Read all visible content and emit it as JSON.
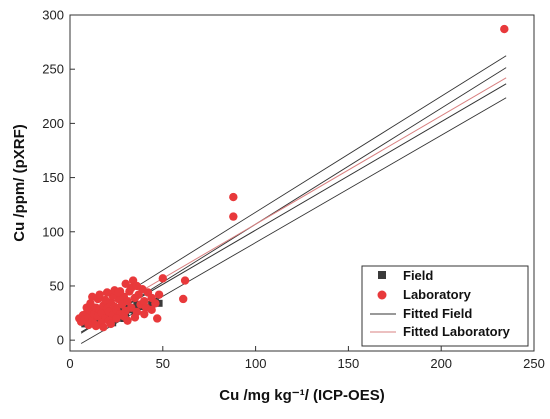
{
  "chart_data": {
    "type": "scatter",
    "title": "",
    "xlabel": "Cu /mg kg⁻¹/ (ICP-OES)",
    "ylabel": "Cu /ppm/ (pXRF)",
    "xlim": [
      0,
      250
    ],
    "ylim": [
      -10,
      300
    ],
    "x_ticks": [
      0,
      50,
      100,
      150,
      200,
      250
    ],
    "y_ticks": [
      0,
      50,
      100,
      150,
      200,
      250,
      300
    ],
    "grid": false,
    "legend_position": "bottom-right",
    "colors": {
      "field": "#3a3a3a",
      "laboratory": "#e8393b",
      "fitted_field": "#333333",
      "fitted_laboratory": "#d98080"
    },
    "series": [
      {
        "name": "Field",
        "marker": "square",
        "points": [
          [
            8,
            15
          ],
          [
            10,
            18
          ],
          [
            12,
            20
          ],
          [
            13,
            17
          ],
          [
            15,
            22
          ],
          [
            16,
            19
          ],
          [
            18,
            24
          ],
          [
            19,
            21
          ],
          [
            20,
            26
          ],
          [
            21,
            23
          ],
          [
            22,
            19
          ],
          [
            24,
            27
          ],
          [
            25,
            24
          ],
          [
            26,
            22
          ],
          [
            27,
            29
          ],
          [
            28,
            26
          ],
          [
            30,
            25
          ],
          [
            31,
            31
          ],
          [
            32,
            28
          ],
          [
            34,
            30
          ],
          [
            35,
            27
          ],
          [
            36,
            33
          ],
          [
            38,
            31
          ],
          [
            40,
            34
          ],
          [
            42,
            30
          ],
          [
            44,
            33
          ],
          [
            46,
            36
          ],
          [
            48,
            34
          ],
          [
            14,
            28
          ],
          [
            17,
            14
          ],
          [
            23,
            16
          ],
          [
            29,
            20
          ]
        ]
      },
      {
        "name": "Laboratory",
        "marker": "circle",
        "points": [
          [
            5,
            20
          ],
          [
            6,
            17
          ],
          [
            7,
            23
          ],
          [
            8,
            19
          ],
          [
            9,
            25
          ],
          [
            10,
            21
          ],
          [
            11,
            27
          ],
          [
            12,
            18
          ],
          [
            13,
            24
          ],
          [
            14,
            30
          ],
          [
            15,
            22
          ],
          [
            16,
            28
          ],
          [
            17,
            25
          ],
          [
            18,
            32
          ],
          [
            19,
            20
          ],
          [
            20,
            29
          ],
          [
            21,
            26
          ],
          [
            22,
            35
          ],
          [
            23,
            23
          ],
          [
            24,
            31
          ],
          [
            25,
            28
          ],
          [
            26,
            38
          ],
          [
            27,
            24
          ],
          [
            28,
            33
          ],
          [
            29,
            40
          ],
          [
            30,
            27
          ],
          [
            31,
            36
          ],
          [
            32,
            45
          ],
          [
            33,
            30
          ],
          [
            34,
            55
          ],
          [
            35,
            39
          ],
          [
            36,
            26
          ],
          [
            37,
            42
          ],
          [
            38,
            33
          ],
          [
            39,
            47
          ],
          [
            40,
            36
          ],
          [
            41,
            30
          ],
          [
            42,
            44
          ],
          [
            44,
            39
          ],
          [
            46,
            34
          ],
          [
            48,
            42
          ],
          [
            50,
            57
          ],
          [
            9,
            30
          ],
          [
            11,
            34
          ],
          [
            13,
            15
          ],
          [
            15,
            38
          ],
          [
            17,
            16
          ],
          [
            19,
            37
          ],
          [
            21,
            18
          ],
          [
            23,
            41
          ],
          [
            25,
            20
          ],
          [
            27,
            45
          ],
          [
            29,
            22
          ],
          [
            31,
            18
          ],
          [
            33,
            48
          ],
          [
            35,
            21
          ],
          [
            12,
            40
          ],
          [
            16,
            42
          ],
          [
            20,
            44
          ],
          [
            24,
            46
          ],
          [
            10,
            14
          ],
          [
            14,
            13
          ],
          [
            18,
            12
          ],
          [
            22,
            15
          ],
          [
            40,
            24
          ],
          [
            44,
            28
          ],
          [
            47,
            20
          ],
          [
            36,
            50
          ],
          [
            30,
            52
          ],
          [
            26,
            44
          ],
          [
            61,
            38
          ],
          [
            62,
            55
          ],
          [
            88,
            132
          ],
          [
            88,
            114
          ],
          [
            234,
            287
          ]
        ]
      }
    ],
    "fits": [
      {
        "name": "Fitted Field",
        "x_range": [
          6,
          235
        ],
        "slope": 1.0,
        "intercept": 1.5
      },
      {
        "name": "Fitted Laboratory",
        "x_range": [
          6,
          235
        ],
        "slope": 1.0,
        "intercept": 7.0
      }
    ],
    "bands": [
      {
        "x_range": [
          6,
          235
        ],
        "slope": 1.07,
        "intercept": 11
      },
      {
        "x_range": [
          6,
          235
        ],
        "slope": 1.07,
        "intercept": 0
      },
      {
        "x_range": [
          6,
          235
        ],
        "slope": 0.99,
        "intercept": -9
      }
    ]
  }
}
